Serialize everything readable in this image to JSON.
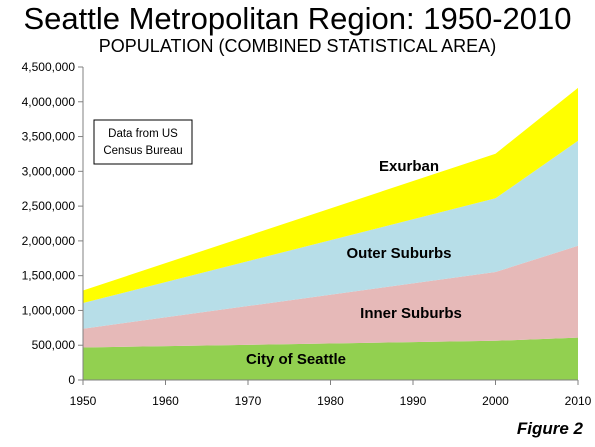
{
  "title": "Seattle Metropolitan Region: 1950-2010",
  "subtitle": "POPULATION (COMBINED STATISTICAL AREA)",
  "figure_label": "Figure 2",
  "note": [
    "Data from US",
    "Census Bureau"
  ],
  "colors": {
    "city_of_seattle": "#92d050",
    "inner_suburbs": "#e6b9b8",
    "outer_suburbs": "#b7dee8",
    "exurban": "#ffff00",
    "axis": "#808080"
  },
  "chart_data": {
    "type": "area",
    "stacked": true,
    "title": "Seattle Metropolitan Region: 1950-2010",
    "subtitle": "POPULATION (COMBINED STATISTICAL AREA)",
    "x": [
      1950,
      2000,
      2010
    ],
    "x_ticks": [
      "1950",
      "1960",
      "1970",
      "1980",
      "1990",
      "2000",
      "2010"
    ],
    "xlim": [
      1950,
      2010
    ],
    "ylim": [
      0,
      4500000
    ],
    "y_ticks": [
      "0",
      "500,000",
      "1,000,000",
      "1,500,000",
      "2,000,000",
      "2,500,000",
      "3,000,000",
      "3,500,000",
      "4,000,000",
      "4,500,000"
    ],
    "series": [
      {
        "name": "City of Seattle",
        "values": [
          467000,
          563000,
          609000
        ],
        "color": "#92d050"
      },
      {
        "name": "Inner Suburbs",
        "values": [
          270000,
          990000,
          1320000
        ],
        "color": "#e6b9b8"
      },
      {
        "name": "Outer Suburbs",
        "values": [
          370000,
          1060000,
          1510000
        ],
        "color": "#b7dee8"
      },
      {
        "name": "Exurban",
        "values": [
          180000,
          640000,
          760000
        ],
        "color": "#ffff00"
      }
    ],
    "grid": false,
    "legend": "none"
  }
}
